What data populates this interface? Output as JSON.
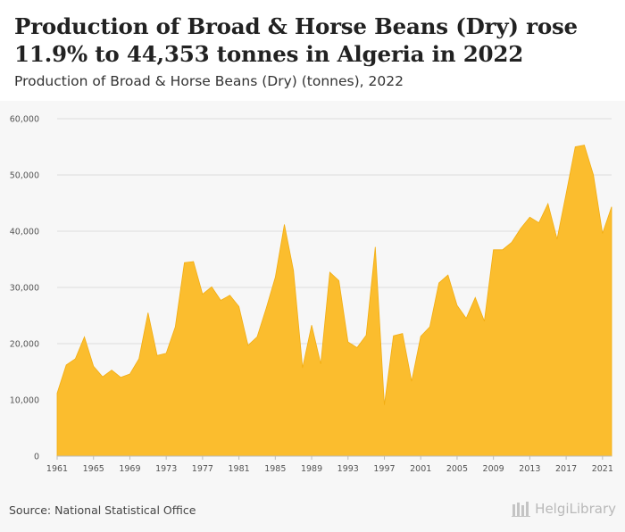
{
  "header": {
    "title": "Production of Broad & Horse Beans (Dry) rose 11.9% to 44,353 tonnes in Algeria in 2022",
    "subtitle": "Production of Broad & Horse Beans (Dry) (tonnes), 2022"
  },
  "footer": {
    "source": "Source: National Statistical Office",
    "brand": "HelgiLibrary"
  },
  "colors": {
    "area_fill": "#fbbd2e",
    "area_stroke": "#f2ad12",
    "grid": "#dcdcdc"
  },
  "chart_data": {
    "type": "area",
    "title": "",
    "xlabel": "",
    "ylabel": "",
    "ylim": [
      0,
      60000
    ],
    "yticks": [
      0,
      10000,
      20000,
      30000,
      40000,
      50000,
      60000
    ],
    "ytick_labels": [
      "0",
      "10,000",
      "20,000",
      "30,000",
      "40,000",
      "50,000",
      "60,000"
    ],
    "xtick_labels": [
      "1961",
      "1965",
      "1969",
      "1973",
      "1977",
      "1981",
      "1985",
      "1989",
      "1993",
      "1997",
      "2001",
      "2005",
      "2009",
      "2013",
      "2017",
      "2021"
    ],
    "grid": true,
    "legend": "none",
    "x": [
      1961,
      1962,
      1963,
      1964,
      1965,
      1966,
      1967,
      1968,
      1969,
      1970,
      1971,
      1972,
      1973,
      1974,
      1975,
      1976,
      1977,
      1978,
      1979,
      1980,
      1981,
      1982,
      1983,
      1984,
      1985,
      1986,
      1987,
      1988,
      1989,
      1990,
      1991,
      1992,
      1993,
      1994,
      1995,
      1996,
      1997,
      1998,
      1999,
      2000,
      2001,
      2002,
      2003,
      2004,
      2005,
      2006,
      2007,
      2008,
      2009,
      2010,
      2011,
      2012,
      2013,
      2014,
      2015,
      2016,
      2017,
      2018,
      2019,
      2020,
      2021,
      2022
    ],
    "values": [
      11200,
      16200,
      17300,
      21200,
      16000,
      14100,
      15300,
      14000,
      14600,
      17300,
      25500,
      17900,
      18300,
      23000,
      34400,
      34600,
      28800,
      30100,
      27700,
      28600,
      26600,
      19700,
      21200,
      26300,
      31800,
      41200,
      33000,
      15700,
      23300,
      16400,
      32700,
      31200,
      20300,
      19300,
      21500,
      37200,
      9100,
      21400,
      21800,
      13300,
      21300,
      23000,
      30800,
      32200,
      26800,
      24500,
      28200,
      24000,
      36700,
      36700,
      38000,
      40500,
      42500,
      41500,
      44900,
      38600,
      46700,
      55000,
      55300,
      50000,
      39600,
      44353
    ]
  }
}
